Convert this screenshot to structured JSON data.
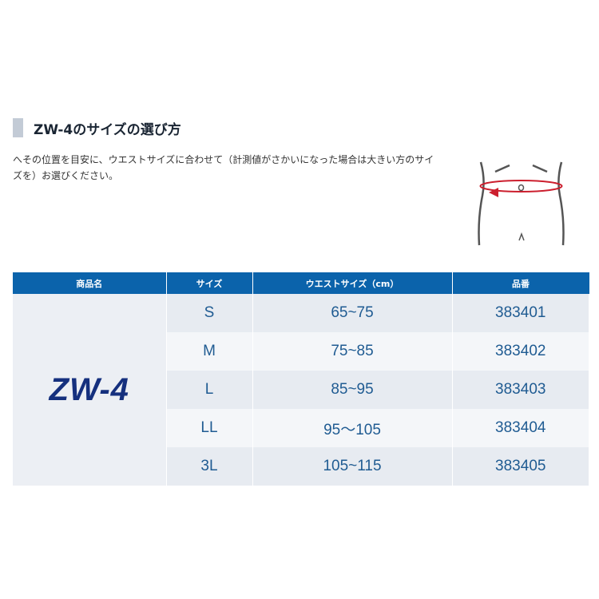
{
  "heading": "ZW-4のサイズの選び方",
  "description": "へその位置を目安に、ウエストサイズに合わせて（計測値がさかいになった場合は大きい方のサイズを）お選びください。",
  "table": {
    "headers": [
      "商品名",
      "サイズ",
      "ウエストサイズ（cm）",
      "品番"
    ],
    "product": "ZW-4",
    "rows": [
      {
        "size": "S",
        "waist": "65~75",
        "code": "383401"
      },
      {
        "size": "M",
        "waist": "75~85",
        "code": "383402"
      },
      {
        "size": "L",
        "waist": "85~95",
        "code": "383403"
      },
      {
        "size": "LL",
        "waist": "95〜105",
        "code": "383404"
      },
      {
        "size": "3L",
        "waist": "105~115",
        "code": "383405"
      }
    ]
  },
  "colors": {
    "header": "#0b63ab",
    "text": "#1f5b92",
    "product": "#15307e",
    "arrow": "#cc1f2e"
  }
}
